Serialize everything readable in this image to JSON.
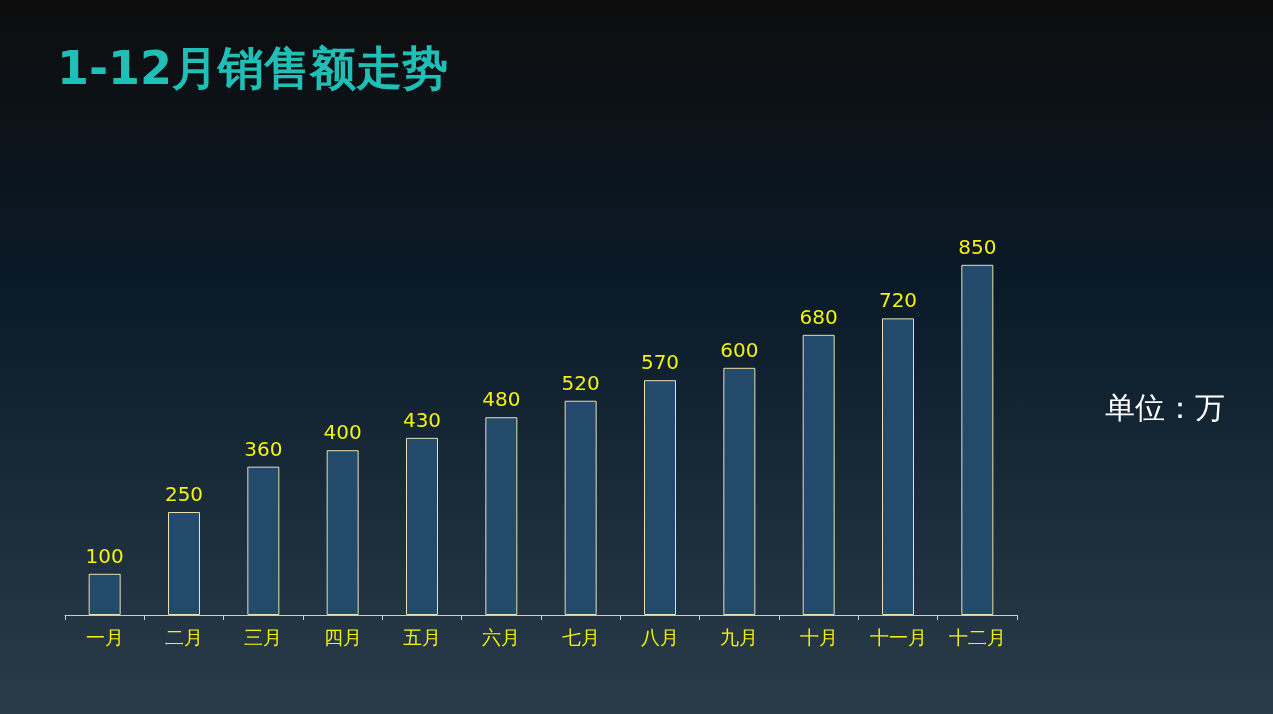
{
  "chart_data": {
    "type": "bar",
    "title": "1-12月销售额走势",
    "categories": [
      "一月",
      "二月",
      "三月",
      "四月",
      "五月",
      "六月",
      "七月",
      "八月",
      "九月",
      "十月",
      "十一月",
      "十二月"
    ],
    "values": [
      100,
      250,
      360,
      400,
      430,
      480,
      520,
      570,
      600,
      680,
      720,
      850
    ],
    "color": "#234a6a",
    "data_labels": true,
    "annotations": [
      "单位：万"
    ]
  }
}
